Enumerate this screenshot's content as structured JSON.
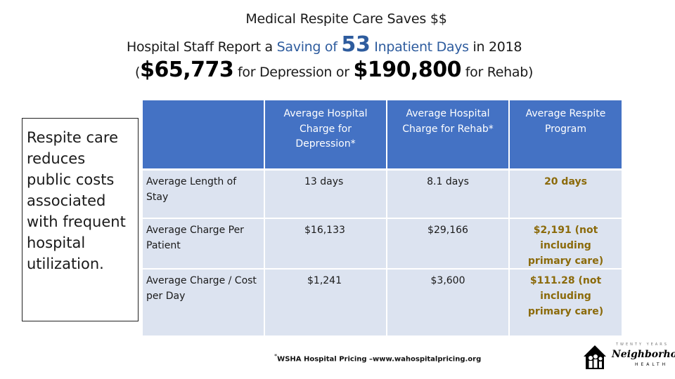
{
  "title": {
    "line1": "Medical Respite Care Saves $$",
    "line2_a": "Hospital Staff Report a ",
    "line2_b": "Saving of ",
    "line2_c": "53",
    "line2_d": " Inpatient Days",
    "line2_e": " in 2018",
    "line3_a": "(",
    "line3_b": "$65,773",
    "line3_c": " for Depression or ",
    "line3_d": "$190,800",
    "line3_e": " for Rehab)"
  },
  "sidebox": {
    "text": "Respite care reduces public costs associated with frequent hospital utilization."
  },
  "table": {
    "headers": [
      "",
      "Average Hospital Charge  for Depression*",
      "Average Hospital Charge for Rehab*",
      "Average Respite Program"
    ],
    "rows": [
      {
        "label": "Average Length of Stay",
        "depression": "13  days",
        "rehab": "8.1 days",
        "respite": "20 days"
      },
      {
        "label": "Average Charge Per Patient",
        "depression": "$16,133",
        "rehab": "$29,166",
        "respite": "$2,191 (not including primary care)"
      },
      {
        "label": "Average Charge / Cost per Day",
        "depression": "$1,241",
        "rehab": "$3,600",
        "respite": "$111.28 (not including primary care)"
      }
    ]
  },
  "footnote": {
    "star": "*",
    "text": "WSHA Hospital Pricing –www.wahospitalpricing.org"
  },
  "logo": {
    "tagline": "TWENTY YEARS",
    "name": "Neighborhood",
    "sub": "HEALTH",
    "icon": "house-people-icon"
  },
  "colors": {
    "header_bg": "#4472C4",
    "row_bg": "#DCE3F0",
    "accent_blue": "#2E5C9E",
    "respite_gold": "#8B6A0A"
  }
}
